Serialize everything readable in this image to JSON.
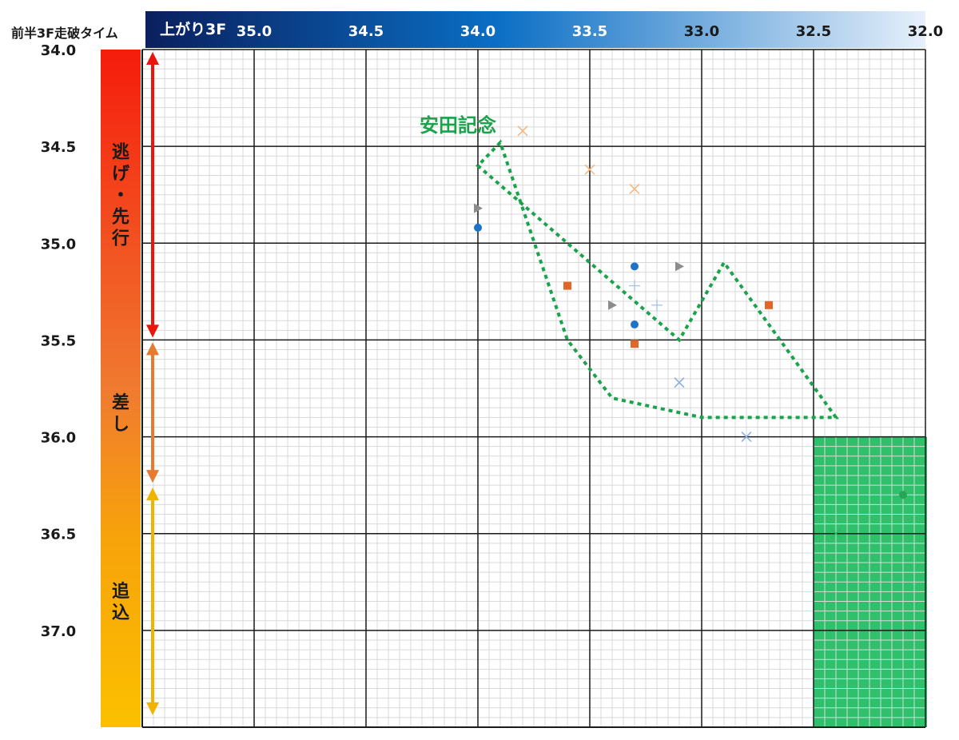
{
  "chart_data": {
    "type": "scatter",
    "y_axis_title": "前半3F走破タイム",
    "x_axis_title": "上がり3F",
    "x_ticks": [
      "35.0",
      "34.5",
      "34.0",
      "33.5",
      "33.0",
      "32.5",
      "32.0"
    ],
    "y_ticks": [
      "34.0",
      "34.5",
      "35.0",
      "35.5",
      "36.0",
      "36.5",
      "37.0"
    ],
    "xlim": [
      35.5,
      32.0
    ],
    "ylim": [
      34.0,
      37.5
    ],
    "grid": true,
    "style_bands": [
      {
        "label": "逃げ・先行",
        "from": 34.0,
        "to": 35.5,
        "color": "#e8160c"
      },
      {
        "label": "差し",
        "from": 35.5,
        "to": 36.25,
        "color": "#e87a30"
      },
      {
        "label": "追込",
        "from": 36.25,
        "to": 37.45,
        "color": "#f2b300"
      }
    ],
    "annotation": {
      "label": "安田記念",
      "color": "#19a34a",
      "polygon": [
        [
          33.9,
          34.48
        ],
        [
          34.0,
          34.6
        ],
        [
          33.1,
          35.5
        ],
        [
          32.9,
          35.1
        ],
        [
          32.4,
          35.9
        ],
        [
          33.0,
          35.9
        ],
        [
          33.4,
          35.8
        ],
        [
          33.6,
          35.5
        ]
      ]
    },
    "highlight_region": {
      "x": [
        32.5,
        32.0
      ],
      "y": [
        36.0,
        37.5
      ],
      "color": "#2ec06a"
    },
    "series": [
      {
        "marker": "x",
        "color": "#f5b880",
        "points": [
          [
            33.8,
            34.42
          ],
          [
            33.5,
            34.62
          ],
          [
            33.3,
            34.72
          ]
        ]
      },
      {
        "marker": "triangle",
        "color": "#8c8c8c",
        "points": [
          [
            34.0,
            34.82
          ],
          [
            33.1,
            35.12
          ],
          [
            33.4,
            35.32
          ]
        ]
      },
      {
        "marker": "circle",
        "color": "#1e73c9",
        "points": [
          [
            34.0,
            34.92
          ],
          [
            33.3,
            35.12
          ],
          [
            33.3,
            35.42
          ]
        ]
      },
      {
        "marker": "square",
        "color": "#e0672a",
        "points": [
          [
            33.6,
            35.22
          ],
          [
            32.7,
            35.32
          ],
          [
            33.3,
            35.52
          ]
        ]
      },
      {
        "marker": "plus",
        "color": "#a9c3e8",
        "points": [
          [
            33.3,
            35.22
          ],
          [
            33.2,
            35.32
          ]
        ]
      },
      {
        "marker": "x",
        "color": "#8fb0e0",
        "points": [
          [
            33.1,
            35.72
          ],
          [
            32.8,
            36.0
          ]
        ]
      },
      {
        "marker": "circle",
        "color": "#23a656",
        "points": [
          [
            32.1,
            36.3
          ]
        ]
      },
      {
        "marker": "x",
        "color": "#2bb862",
        "points": [
          [
            32.4,
            36.5
          ]
        ]
      }
    ]
  }
}
